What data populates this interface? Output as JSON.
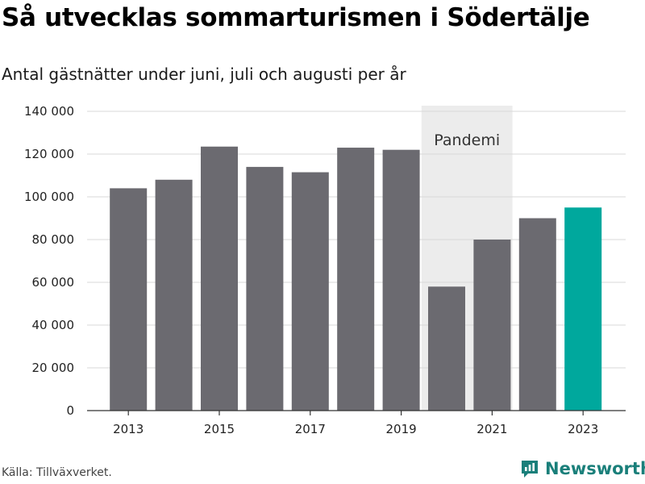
{
  "title": "Så utvecklas sommarturismen i Södertälje",
  "subtitle": "Antal gästnätter under juni, juli och augusti per år",
  "source": "Källa: Tillväxverket.",
  "brand": {
    "name": "Newsworthy",
    "icon": "newsworthy-logo-icon",
    "color": "#1a7f7a"
  },
  "chart_data": {
    "type": "bar",
    "categories": [
      "2013",
      "2014",
      "2015",
      "2016",
      "2017",
      "2018",
      "2019",
      "2020",
      "2021",
      "2022",
      "2023"
    ],
    "values": [
      104000,
      108000,
      123500,
      114000,
      111500,
      123000,
      122000,
      58000,
      80000,
      90000,
      95000
    ],
    "ylim": [
      0,
      140000
    ],
    "yticks": [
      0,
      20000,
      40000,
      60000,
      80000,
      100000,
      120000,
      140000
    ],
    "ytick_labels": [
      "0",
      "20 000",
      "40 000",
      "60 000",
      "80 000",
      "100 000",
      "120 000",
      "140 000"
    ],
    "xtick_labels": [
      "2013",
      "2015",
      "2017",
      "2019",
      "2021",
      "2023"
    ],
    "grid": true,
    "bar_color": "#6b6a70",
    "highlight_color": "#00a89d",
    "highlight_category": "2023",
    "shade_color": "#ececec",
    "annotation": {
      "label": "Pandemi",
      "from": "2020",
      "to": "2021"
    }
  }
}
